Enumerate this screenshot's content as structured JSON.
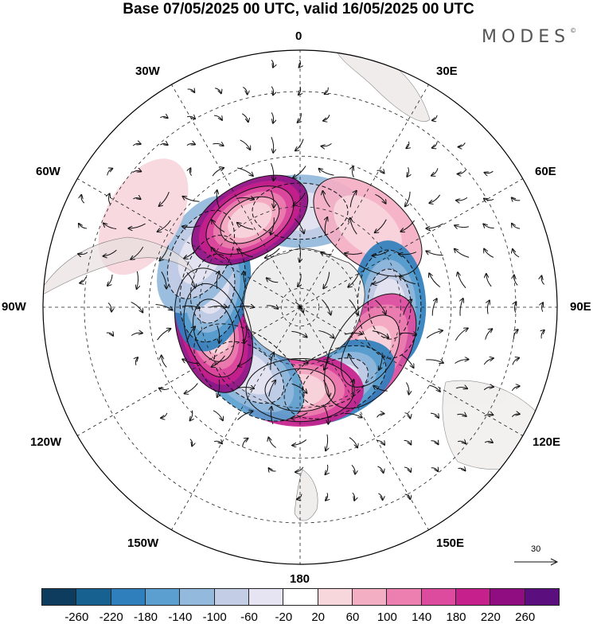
{
  "title": "Base 07/05/2025 00 UTC, valid 16/05/2025 00 UTC",
  "brand": "MODES",
  "brand_mark": "©",
  "longitude_labels": {
    "l0": "0",
    "l30e": "30E",
    "l60e": "60E",
    "l90e": "90E",
    "l120e": "120E",
    "l150e": "150E",
    "l180": "180",
    "l150w": "150W",
    "l120w": "120W",
    "l90w": "90W",
    "l60w": "60W",
    "l30w": "30W"
  },
  "reference_vector": {
    "label": "30",
    "icon": "arrow-right-icon"
  },
  "colorbar": {
    "colors": [
      "#0d3c5e",
      "#16618f",
      "#2f7fbd",
      "#5a9fcf",
      "#93b9dc",
      "#c3cde6",
      "#e6e4f2",
      "#ffffff",
      "#f7d6dc",
      "#f4aec3",
      "#ec7fb0",
      "#dd4b9e",
      "#c5208c",
      "#8f0d81",
      "#5b0f7e"
    ],
    "ticks": [
      "-260",
      "-220",
      "-180",
      "-140",
      "-100",
      "-60",
      "-20",
      "20",
      "60",
      "100",
      "140",
      "180",
      "220",
      "260"
    ]
  },
  "anomaly_centers": [
    {
      "lon": 0,
      "lat": -42,
      "value": -150
    },
    {
      "lon": 40,
      "lat": -38,
      "value": 110
    },
    {
      "lon": 88,
      "lat": -45,
      "value": -230
    },
    {
      "lon": 122,
      "lat": -48,
      "value": 190
    },
    {
      "lon": 155,
      "lat": -48,
      "value": -200
    },
    {
      "lon": 180,
      "lat": -48,
      "value": 230
    },
    {
      "lon": -142,
      "lat": -48,
      "value": -180
    },
    {
      "lon": -105,
      "lat": -45,
      "value": 260
    },
    {
      "lon": -78,
      "lat": -45,
      "value": -210
    },
    {
      "lon": -62,
      "lat": -35,
      "value": -130
    },
    {
      "lon": -30,
      "lat": -40,
      "value": 240
    },
    {
      "lon": -60,
      "lat": -10,
      "value": 60
    }
  ]
}
